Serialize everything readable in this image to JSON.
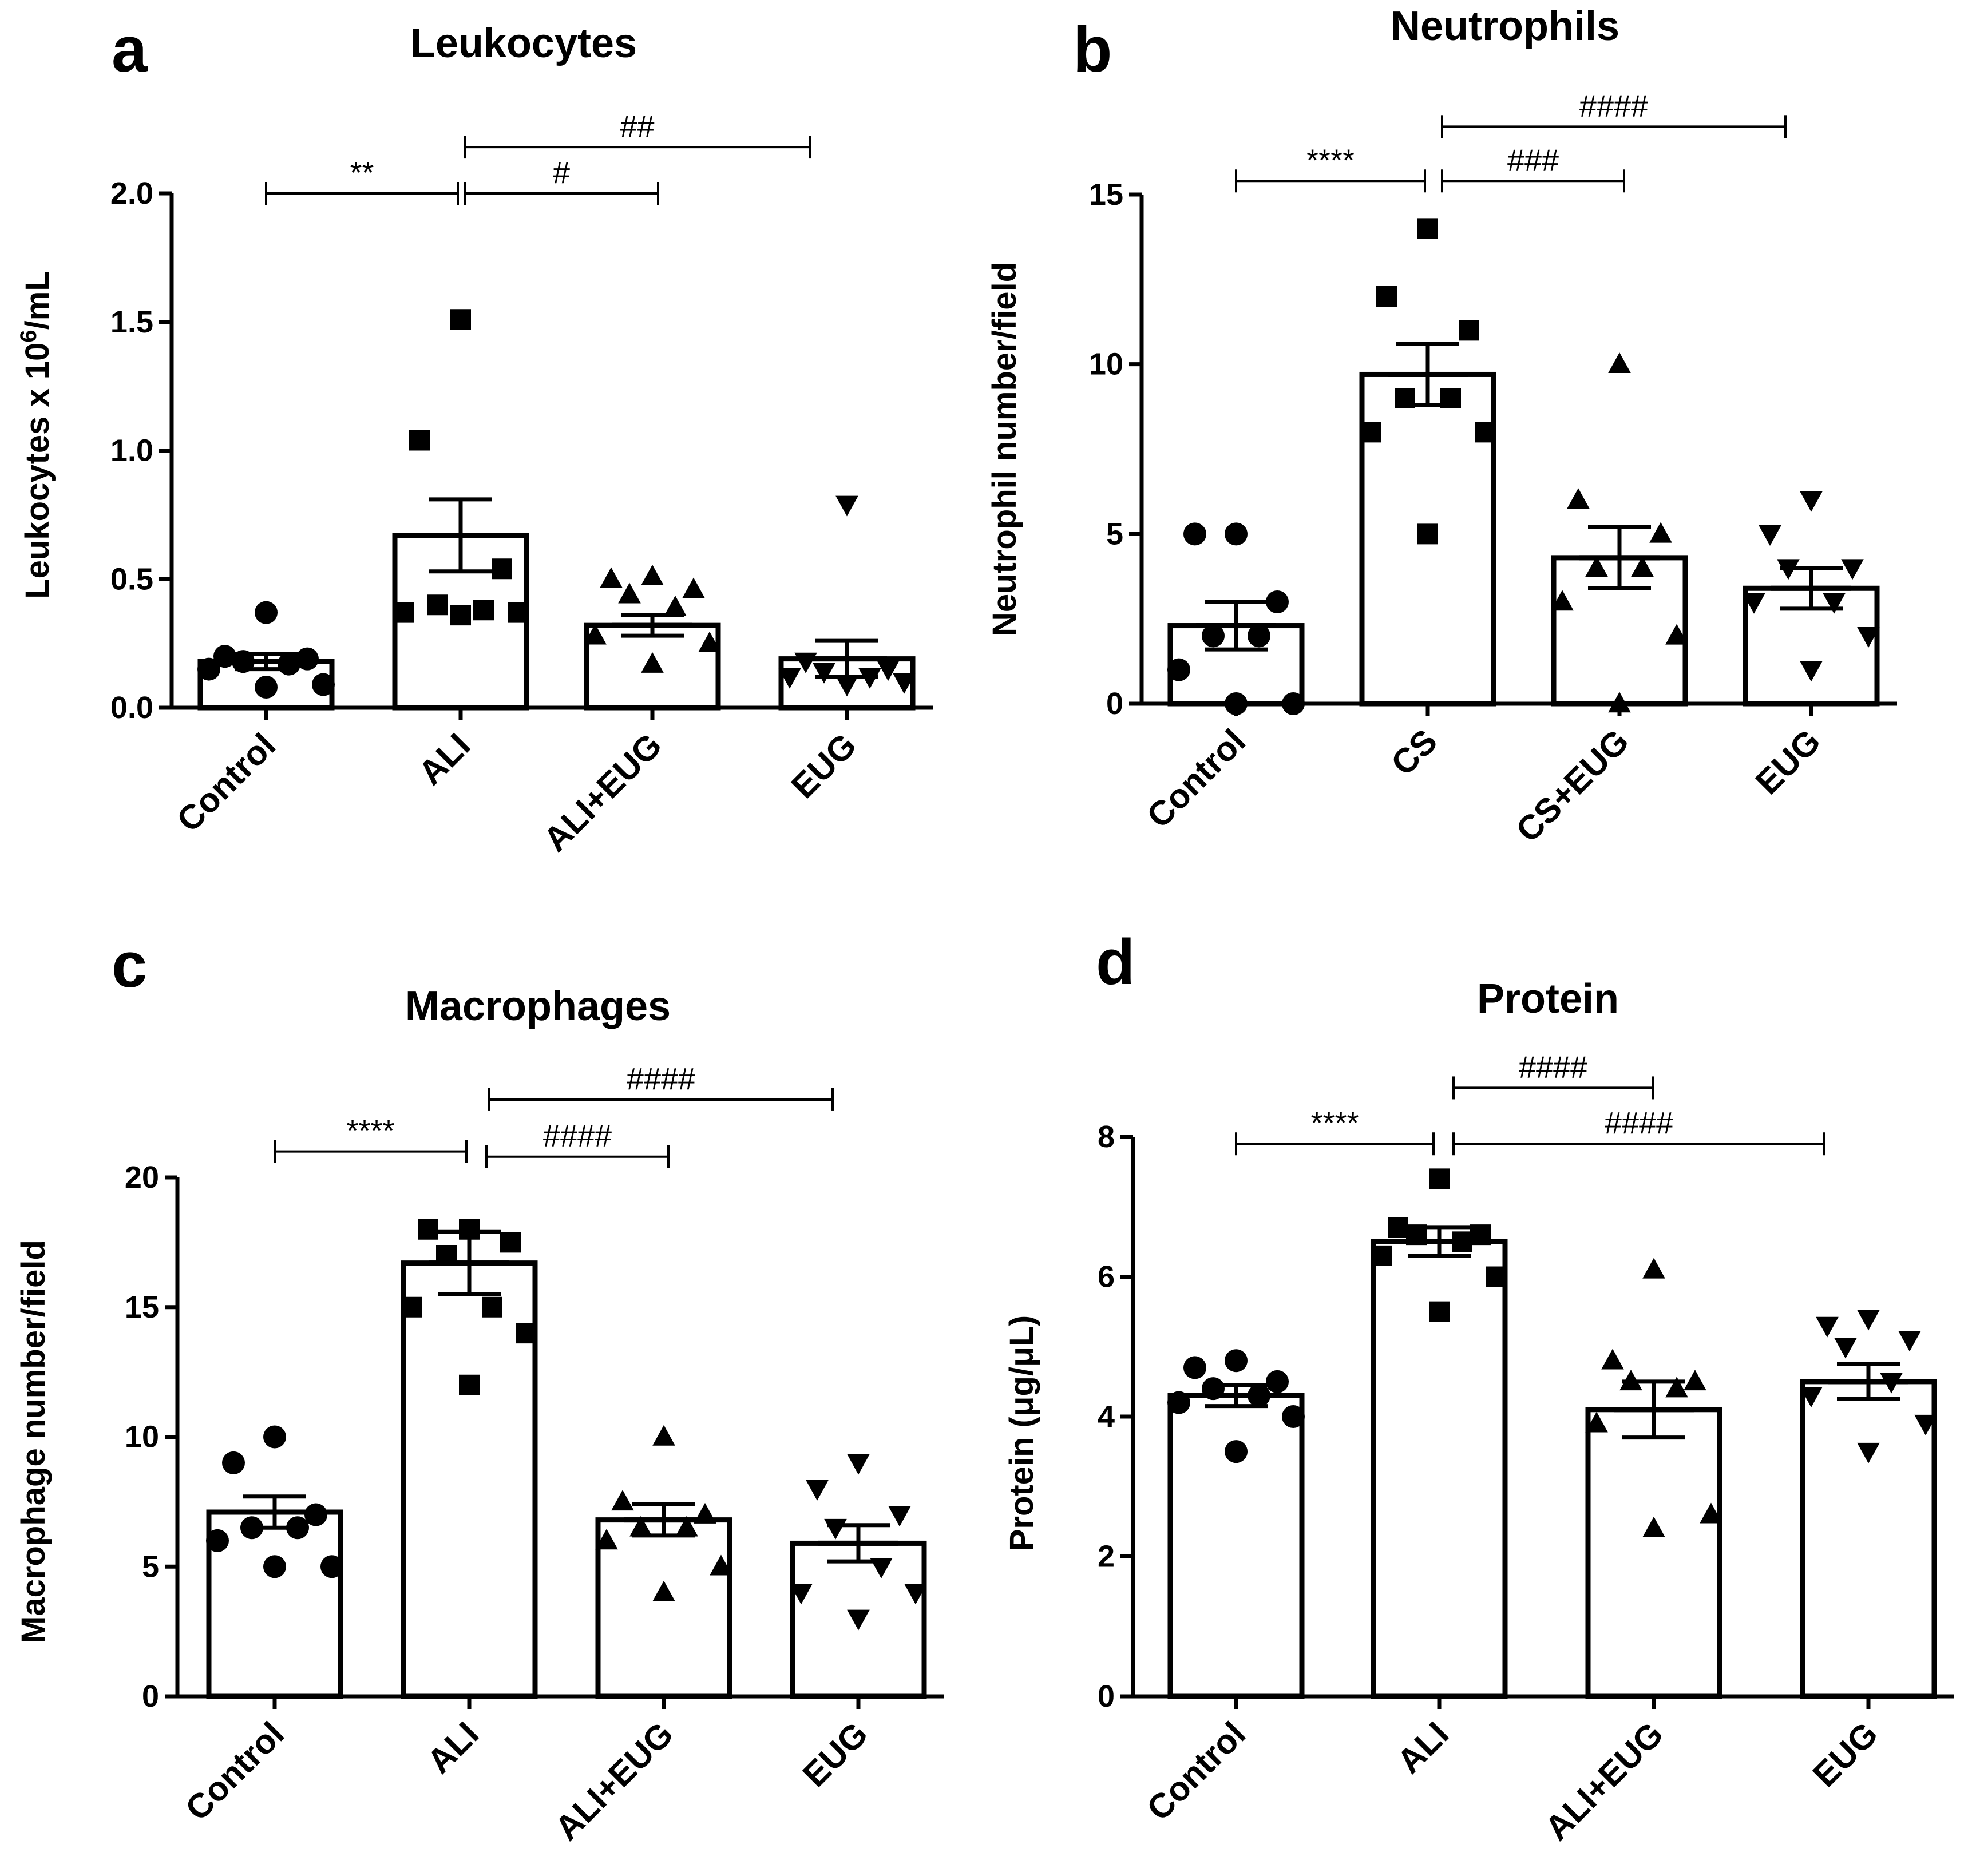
{
  "chart_data": [
    {
      "type": "bar",
      "panel_label": "a",
      "title": "Leukocytes",
      "ylabel": "Leukocytes x 10",
      "ylabel_sup": "6",
      "ylabel_suffix": "/mL",
      "categories": [
        "Control",
        "ALI",
        "ALI+EUG",
        "EUG"
      ],
      "ylim": [
        0,
        2.0
      ],
      "ytick_values": [
        0,
        0.5,
        1.0,
        1.5,
        2.0
      ],
      "ytick_labels": [
        "0.0",
        "0.5",
        "1.0",
        "1.5",
        "2.0"
      ],
      "means": [
        0.18,
        0.67,
        0.32,
        0.19
      ],
      "sem": [
        0.03,
        0.14,
        0.04,
        0.07
      ],
      "markers": [
        "circle",
        "square",
        "triangle-up",
        "triangle-down"
      ],
      "points": [
        [
          0.37,
          0.2,
          0.19,
          0.18,
          0.17,
          0.15,
          0.09,
          0.08
        ],
        [
          1.51,
          1.04,
          0.54,
          0.4,
          0.38,
          0.37,
          0.37,
          0.36
        ],
        [
          0.51,
          0.5,
          0.46,
          0.44,
          0.39,
          0.28,
          0.25,
          0.17
        ],
        [
          0.79,
          0.18,
          0.15,
          0.14,
          0.12,
          0.12,
          0.1,
          0.09
        ]
      ],
      "comparisons": [
        {
          "from": 0,
          "to": 1,
          "y": 2.0,
          "label": "**"
        },
        {
          "from": 1,
          "to": 2,
          "y": 2.0,
          "label": "#"
        },
        {
          "from": 1,
          "to": 3,
          "y": 2.18,
          "label": "##"
        }
      ]
    },
    {
      "type": "bar",
      "panel_label": "b",
      "title": "Neutrophils",
      "ylabel": "Neutrophil number/field",
      "categories": [
        "Control",
        "CS",
        "CS+EUG",
        "EUG"
      ],
      "ylim": [
        0,
        15
      ],
      "ytick_values": [
        0,
        5,
        10,
        15
      ],
      "ytick_labels": [
        "0",
        "5",
        "10",
        "15"
      ],
      "means": [
        2.3,
        9.7,
        4.3,
        3.4
      ],
      "sem": [
        0.7,
        0.9,
        0.9,
        0.6
      ],
      "markers": [
        "circle",
        "square",
        "triangle-up",
        "triangle-down"
      ],
      "points": [
        [
          5,
          5,
          3,
          2,
          2,
          1,
          0,
          0
        ],
        [
          14,
          12,
          11,
          9,
          9,
          8,
          8,
          5
        ],
        [
          10,
          6,
          5,
          4,
          4,
          3,
          2,
          0
        ],
        [
          6,
          5,
          4,
          4,
          3,
          3,
          2,
          1
        ]
      ],
      "comparisons": [
        {
          "from": 0,
          "to": 1,
          "y": 15.4,
          "label": "****"
        },
        {
          "from": 1,
          "to": 2,
          "y": 15.4,
          "label": "###"
        },
        {
          "from": 1,
          "to": 3,
          "y": 17.0,
          "label": "####"
        }
      ]
    },
    {
      "type": "bar",
      "panel_label": "c",
      "title": "Macrophages",
      "ylabel": "Macrophage number/field",
      "categories": [
        "Control",
        "ALI",
        "ALI+EUG",
        "EUG"
      ],
      "ylim": [
        0,
        20
      ],
      "ytick_values": [
        0,
        5,
        10,
        15,
        20
      ],
      "ytick_labels": [
        "0",
        "5",
        "10",
        "15",
        "20"
      ],
      "means": [
        7.1,
        16.7,
        6.8,
        5.9
      ],
      "sem": [
        0.6,
        1.2,
        0.6,
        0.7
      ],
      "markers": [
        "circle",
        "square",
        "triangle-up",
        "triangle-down"
      ],
      "points": [
        [
          10,
          9,
          7,
          6.5,
          6.5,
          6,
          5,
          5
        ],
        [
          18,
          18,
          17.5,
          17,
          15,
          15,
          14,
          12
        ],
        [
          10,
          7.5,
          7,
          6.5,
          6.5,
          6,
          5,
          4
        ],
        [
          9,
          8,
          7,
          6.5,
          5,
          4,
          4,
          3
        ]
      ],
      "comparisons": [
        {
          "from": 0,
          "to": 1,
          "y": 21.0,
          "label": "****"
        },
        {
          "from": 1,
          "to": 2,
          "y": 20.8,
          "label": "####"
        },
        {
          "from": 1,
          "to": 3,
          "y": 23.0,
          "label": "####"
        }
      ]
    },
    {
      "type": "bar",
      "panel_label": "d",
      "title": "Protein",
      "ylabel": "Protein (μg/μL)",
      "categories": [
        "Control",
        "ALI",
        "ALI+EUG",
        "EUG"
      ],
      "ylim": [
        0,
        8
      ],
      "ytick_values": [
        0,
        2,
        4,
        6,
        8
      ],
      "ytick_labels": [
        "0",
        "2",
        "4",
        "6",
        "8"
      ],
      "means": [
        4.3,
        6.5,
        4.1,
        4.5
      ],
      "sem": [
        0.15,
        0.2,
        0.4,
        0.25
      ],
      "markers": [
        "circle",
        "square",
        "triangle-up",
        "triangle-down"
      ],
      "points": [
        [
          4.8,
          4.7,
          4.5,
          4.4,
          4.3,
          4.2,
          4.0,
          3.5
        ],
        [
          7.4,
          6.7,
          6.6,
          6.6,
          6.5,
          6.3,
          6.0,
          5.5
        ],
        [
          6.1,
          4.8,
          4.5,
          4.5,
          4.4,
          3.9,
          2.6,
          2.4
        ],
        [
          5.4,
          5.3,
          5.1,
          5.0,
          4.5,
          4.3,
          3.9,
          3.5
        ]
      ],
      "comparisons": [
        {
          "from": 0,
          "to": 1,
          "y": 7.9,
          "label": "****"
        },
        {
          "from": 1,
          "to": 2,
          "y": 8.7,
          "label": "####"
        },
        {
          "from": 1,
          "to": 3,
          "y": 7.9,
          "label": "####"
        }
      ]
    }
  ]
}
